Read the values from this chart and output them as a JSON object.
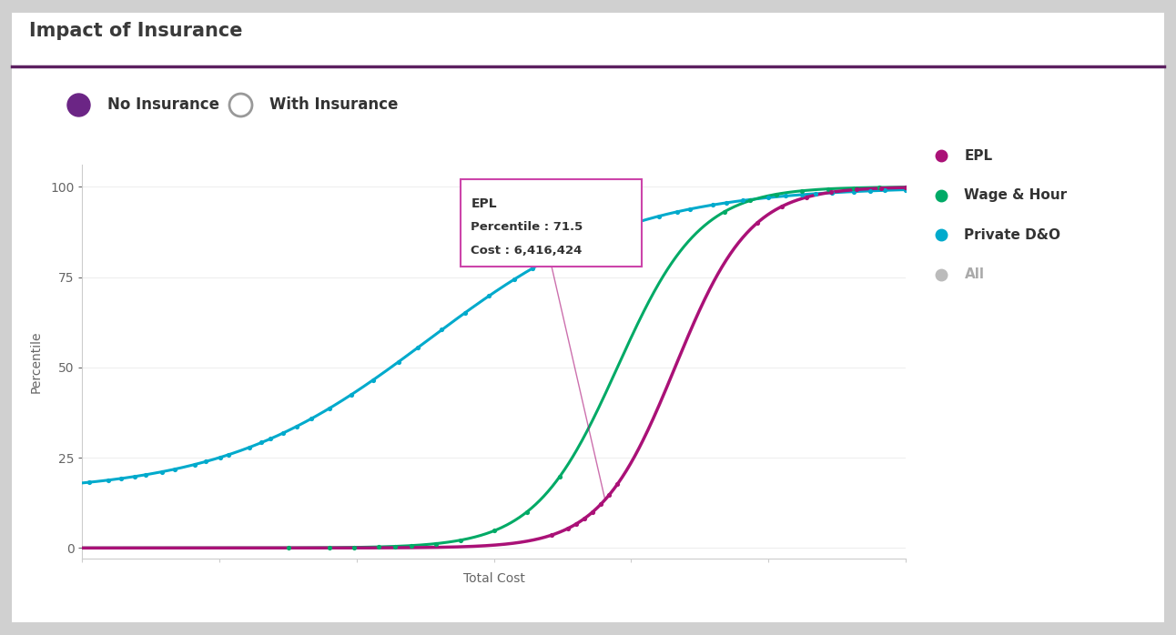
{
  "title": "Impact of Insurance",
  "title_color": "#3a3a3a",
  "title_bar_color": "#5c2060",
  "background_color": "#d0d0d0",
  "chart_bg": "#ffffff",
  "xlabel": "Total Cost",
  "ylabel": "Percentile",
  "yticks": [
    0,
    25,
    50,
    75,
    100
  ],
  "epl_color": "#aa1177",
  "wage_color": "#00aa66",
  "d_and_o_color": "#00aacc",
  "all_color": "#bbbbbb",
  "legend_labels": [
    "EPL",
    "Wage & Hour",
    "Private D&O",
    "All"
  ],
  "legend_colors": [
    "#aa1177",
    "#00aa66",
    "#00aacc",
    "#bbbbbb"
  ],
  "no_insurance_label": "No Insurance",
  "with_insurance_label": "With Insurance",
  "no_insurance_color": "#6b2585",
  "tooltip_title": "EPL",
  "tooltip_line1": "Percentile : 71.5",
  "tooltip_line2": "Cost : 6,416,424",
  "tooltip_border_color": "#cc44aa"
}
